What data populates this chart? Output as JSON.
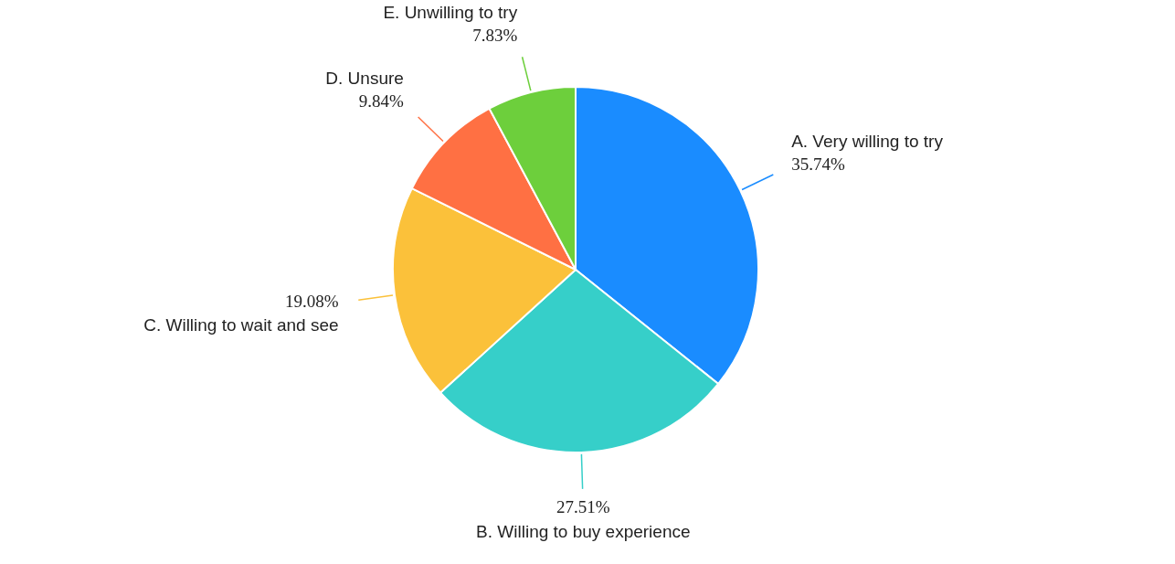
{
  "chart_data": {
    "type": "pie",
    "categories": [
      "A. Very willing to try",
      "B. Willing to buy experience",
      "C. Willing to wait and see",
      "D. Unsure",
      "E. Unwilling to try"
    ],
    "values": [
      35.74,
      27.51,
      19.08,
      9.84,
      7.83
    ],
    "value_labels": [
      "35.74%",
      "27.51%",
      "19.08%",
      "9.84%",
      "7.83%"
    ],
    "colors": [
      "#1a8cff",
      "#36cfc9",
      "#fbc13a",
      "#ff7043",
      "#6dcf3c"
    ]
  }
}
